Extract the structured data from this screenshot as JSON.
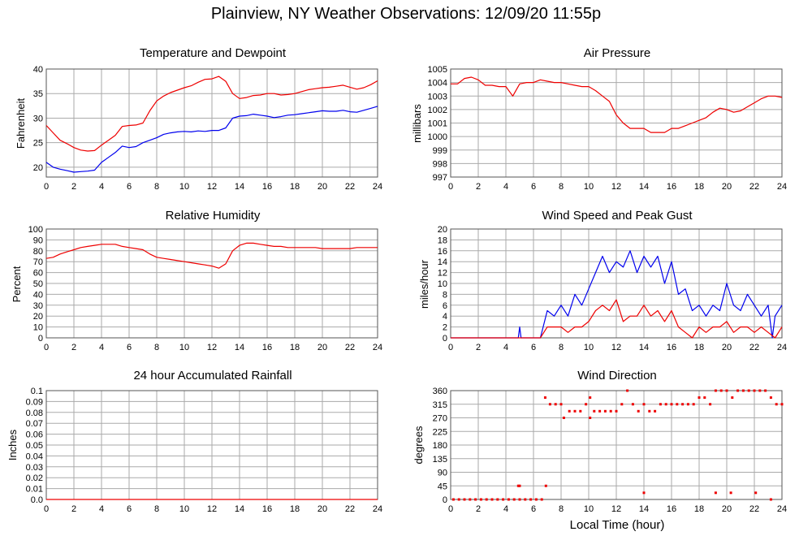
{
  "page": {
    "title": "Plainview, NY Weather Observations: 12/09/20 11:55p"
  },
  "colors": {
    "red": "#ee0000",
    "blue": "#0000ee",
    "grid": "#aaaaaa",
    "frame": "#555555"
  },
  "chart_data": [
    {
      "id": "temp",
      "type": "line",
      "title": "Temperature and Dewpoint",
      "ylabel": "Fahrenheit",
      "xlabel": "",
      "xlim": [
        0,
        24
      ],
      "ylim": [
        18,
        40
      ],
      "yticks": [
        20,
        25,
        30,
        35,
        40
      ],
      "xticks": [
        0,
        2,
        4,
        6,
        8,
        10,
        12,
        14,
        16,
        18,
        20,
        22,
        24
      ],
      "grid": true,
      "series": [
        {
          "color": "red",
          "x": [
            0,
            0.5,
            1,
            1.5,
            2,
            2.5,
            3,
            3.5,
            4,
            4.5,
            5,
            5.5,
            6,
            6.5,
            7,
            7.5,
            8,
            8.5,
            9,
            9.5,
            10,
            10.5,
            11,
            11.5,
            12,
            12.5,
            13,
            13.5,
            14,
            14.5,
            15,
            15.5,
            16,
            16.5,
            17,
            17.5,
            18,
            18.5,
            19,
            19.5,
            20,
            20.5,
            21,
            21.5,
            22,
            22.5,
            23,
            23.5,
            24
          ],
          "y": [
            28.5,
            27,
            25.5,
            24.8,
            24,
            23.5,
            23.3,
            23.4,
            24.5,
            25.5,
            26.5,
            28.3,
            28.5,
            28.6,
            29,
            31.5,
            33.5,
            34.5,
            35.2,
            35.7,
            36.2,
            36.6,
            37.3,
            37.9,
            38,
            38.5,
            37.5,
            35,
            34,
            34.2,
            34.6,
            34.7,
            35,
            35,
            34.7,
            34.8,
            35,
            35.4,
            35.8,
            36,
            36.2,
            36.3,
            36.5,
            36.7,
            36.3,
            35.9,
            36.2,
            36.8,
            37.6
          ]
        },
        {
          "color": "blue",
          "x": [
            0,
            0.5,
            1,
            1.5,
            2,
            2.5,
            3,
            3.5,
            4,
            4.5,
            5,
            5.5,
            6,
            6.5,
            7,
            7.5,
            8,
            8.5,
            9,
            9.5,
            10,
            10.5,
            11,
            11.5,
            12,
            12.5,
            13,
            13.5,
            14,
            14.5,
            15,
            15.5,
            16,
            16.5,
            17,
            17.5,
            18,
            18.5,
            19,
            19.5,
            20,
            20.5,
            21,
            21.5,
            22,
            22.5,
            23,
            23.5,
            24
          ],
          "y": [
            21,
            20,
            19.6,
            19.3,
            19,
            19.1,
            19.2,
            19.4,
            21,
            22,
            23,
            24.3,
            24,
            24.2,
            25,
            25.5,
            26,
            26.7,
            27,
            27.2,
            27.3,
            27.2,
            27.4,
            27.3,
            27.5,
            27.5,
            28,
            30,
            30.4,
            30.5,
            30.8,
            30.6,
            30.4,
            30.1,
            30.3,
            30.6,
            30.7,
            30.9,
            31.1,
            31.3,
            31.5,
            31.4,
            31.4,
            31.6,
            31.3,
            31.2,
            31.6,
            32,
            32.4
          ]
        }
      ]
    },
    {
      "id": "pressure",
      "type": "line",
      "title": "Air Pressure",
      "ylabel": "millibars",
      "xlabel": "",
      "xlim": [
        0,
        24
      ],
      "ylim": [
        997,
        1005
      ],
      "yticks": [
        997,
        998,
        999,
        1000,
        1001,
        1002,
        1003,
        1004,
        1005
      ],
      "xticks": [
        0,
        2,
        4,
        6,
        8,
        10,
        12,
        14,
        16,
        18,
        20,
        22,
        24
      ],
      "grid": true,
      "series": [
        {
          "color": "red",
          "x": [
            0,
            0.5,
            1,
            1.5,
            2,
            2.5,
            3,
            3.5,
            4,
            4.5,
            5,
            5.5,
            6,
            6.5,
            7,
            7.5,
            8,
            8.5,
            9,
            9.5,
            10,
            10.5,
            11,
            11.5,
            12,
            12.5,
            13,
            13.5,
            14,
            14.5,
            15,
            15.5,
            16,
            16.5,
            17,
            17.5,
            18,
            18.5,
            19,
            19.5,
            20,
            20.5,
            21,
            21.5,
            22,
            22.5,
            23,
            23.5,
            24
          ],
          "y": [
            1003.9,
            1003.9,
            1004.3,
            1004.4,
            1004.2,
            1003.8,
            1003.8,
            1003.7,
            1003.7,
            1003.0,
            1003.9,
            1004.0,
            1004.0,
            1004.2,
            1004.1,
            1004.0,
            1004.0,
            1003.9,
            1003.8,
            1003.7,
            1003.7,
            1003.4,
            1003.0,
            1002.6,
            1001.6,
            1001.0,
            1000.6,
            1000.6,
            1000.6,
            1000.3,
            1000.3,
            1000.3,
            1000.6,
            1000.6,
            1000.8,
            1001.0,
            1001.2,
            1001.4,
            1001.8,
            1002.1,
            1002.0,
            1001.8,
            1001.9,
            1002.2,
            1002.5,
            1002.8,
            1003.0,
            1003.0,
            1002.9
          ]
        }
      ]
    },
    {
      "id": "humidity",
      "type": "line",
      "title": "Relative Humidity",
      "ylabel": "Percent",
      "xlabel": "",
      "xlim": [
        0,
        24
      ],
      "ylim": [
        0,
        100
      ],
      "yticks": [
        0,
        10,
        20,
        30,
        40,
        50,
        60,
        70,
        80,
        90,
        100
      ],
      "xticks": [
        0,
        2,
        4,
        6,
        8,
        10,
        12,
        14,
        16,
        18,
        20,
        22,
        24
      ],
      "grid": true,
      "series": [
        {
          "color": "red",
          "x": [
            0,
            0.5,
            1,
            1.5,
            2,
            2.5,
            3,
            3.5,
            4,
            4.5,
            5,
            5.5,
            6,
            6.5,
            7,
            7.5,
            8,
            8.5,
            9,
            9.5,
            10,
            10.5,
            11,
            11.5,
            12,
            12.5,
            13,
            13.5,
            14,
            14.5,
            15,
            15.5,
            16,
            16.5,
            17,
            17.5,
            18,
            18.5,
            19,
            19.5,
            20,
            20.5,
            21,
            21.5,
            22,
            22.5,
            23,
            23.5,
            24
          ],
          "y": [
            73,
            74,
            77,
            79,
            81,
            83,
            84,
            85,
            86,
            86,
            86,
            84,
            83,
            82,
            81,
            77,
            74,
            73,
            72,
            71,
            70,
            69,
            68,
            67,
            66,
            64,
            68,
            80,
            85,
            87,
            87,
            86,
            85,
            84,
            84,
            83,
            83,
            83,
            83,
            83,
            82,
            82,
            82,
            82,
            82,
            83,
            83,
            83,
            83
          ]
        }
      ]
    },
    {
      "id": "wind",
      "type": "line",
      "title": "Wind Speed and Peak Gust",
      "ylabel": "miles/hour",
      "xlabel": "",
      "xlim": [
        0,
        24
      ],
      "ylim": [
        0,
        20
      ],
      "yticks": [
        0,
        2,
        4,
        6,
        8,
        10,
        12,
        14,
        16,
        18,
        20
      ],
      "xticks": [
        0,
        2,
        4,
        6,
        8,
        10,
        12,
        14,
        16,
        18,
        20,
        22,
        24
      ],
      "grid": true,
      "series": [
        {
          "color": "blue",
          "x": [
            0,
            4.9,
            5.0,
            5.1,
            6.5,
            6.7,
            7.0,
            7.5,
            8.0,
            8.5,
            9.0,
            9.5,
            10.0,
            10.5,
            11.0,
            11.5,
            12.0,
            12.5,
            13.0,
            13.5,
            14.0,
            14.5,
            15.0,
            15.5,
            16.0,
            16.5,
            17.0,
            17.5,
            18.0,
            18.5,
            19.0,
            19.5,
            20.0,
            20.5,
            21.0,
            21.5,
            22.0,
            22.5,
            23.0,
            23.3,
            23.5,
            24.0
          ],
          "y": [
            0,
            0,
            2,
            0,
            0,
            2,
            5,
            4,
            6,
            4,
            8,
            6,
            9,
            12,
            15,
            12,
            14,
            13,
            16,
            12,
            15,
            13,
            15,
            10,
            14,
            8,
            9,
            5,
            6,
            4,
            6,
            5,
            10,
            6,
            5,
            8,
            6,
            4,
            6,
            0,
            4,
            6
          ]
        },
        {
          "color": "red",
          "x": [
            0,
            6.5,
            7.0,
            7.5,
            8.0,
            8.5,
            9.0,
            9.5,
            10.0,
            10.5,
            11.0,
            11.5,
            12.0,
            12.5,
            13.0,
            13.5,
            14.0,
            14.5,
            15.0,
            15.5,
            16.0,
            16.5,
            17.0,
            17.5,
            18.0,
            18.5,
            19.0,
            19.5,
            20.0,
            20.5,
            21.0,
            21.5,
            22.0,
            22.5,
            23.0,
            23.5,
            24.0
          ],
          "y": [
            0,
            0,
            2,
            2,
            2,
            1,
            2,
            2,
            3,
            5,
            6,
            5,
            7,
            3,
            4,
            4,
            6,
            4,
            5,
            3,
            5,
            2,
            1,
            0,
            2,
            1,
            2,
            2,
            3,
            1,
            2,
            2,
            1,
            2,
            1,
            0,
            2
          ]
        }
      ]
    },
    {
      "id": "rain",
      "type": "line",
      "title": "24 hour Accumulated Rainfall",
      "ylabel": "Inches",
      "xlabel": "",
      "xlim": [
        0,
        24
      ],
      "ylim": [
        0,
        0.1
      ],
      "yticks": [
        0.0,
        0.01,
        0.02,
        0.03,
        0.04,
        0.05,
        0.06,
        0.07,
        0.08,
        0.09,
        0.1
      ],
      "yticklabels": [
        "0.0",
        "0.01",
        "0.02",
        "0.03",
        "0.04",
        "0.05",
        "0.06",
        "0.07",
        "0.08",
        "0.09",
        "0.1"
      ],
      "xticks": [
        0,
        2,
        4,
        6,
        8,
        10,
        12,
        14,
        16,
        18,
        20,
        22,
        24
      ],
      "grid": true,
      "series": [
        {
          "color": "red",
          "x": [
            0,
            24
          ],
          "y": [
            0,
            0
          ]
        }
      ]
    },
    {
      "id": "direction",
      "type": "scatter",
      "title": "Wind Direction",
      "ylabel": "degrees",
      "xlabel": "Local Time (hour)",
      "xlim": [
        0,
        24
      ],
      "ylim": [
        0,
        360
      ],
      "yticks": [
        0,
        45,
        90,
        135,
        180,
        225,
        270,
        315,
        360
      ],
      "xticks": [
        0,
        2,
        4,
        6,
        8,
        10,
        12,
        14,
        16,
        18,
        20,
        22,
        24
      ],
      "grid": true,
      "series": [
        {
          "color": "red",
          "x": [
            0.2,
            0.6,
            1.0,
            1.4,
            1.8,
            2.2,
            2.6,
            3.0,
            3.4,
            3.8,
            4.2,
            4.6,
            5.0,
            5.4,
            5.8,
            6.2,
            6.6,
            6.85,
            7.2,
            7.6,
            8.0,
            8.2,
            8.6,
            9.0,
            9.4,
            9.8,
            10.1,
            10.4,
            10.8,
            11.2,
            11.6,
            12.0,
            12.4,
            12.8,
            13.2,
            13.6,
            14.0,
            14.4,
            14.8,
            15.2,
            15.6,
            16.0,
            16.4,
            16.8,
            17.2,
            17.6,
            18.0,
            18.4,
            18.8,
            19.2,
            19.6,
            20.0,
            20.4,
            20.8,
            21.2,
            21.6,
            22.0,
            22.4,
            22.8,
            23.2,
            23.6,
            24.0,
            4.9,
            5.0,
            6.9,
            10.1,
            14.0,
            19.2,
            20.3,
            22.1,
            23.2
          ],
          "y": [
            0,
            0,
            0,
            0,
            0,
            0,
            0,
            0,
            0,
            0,
            0,
            0,
            0,
            0,
            0,
            0,
            0,
            337,
            315,
            315,
            315,
            270,
            292,
            292,
            292,
            315,
            270,
            292,
            292,
            292,
            292,
            292,
            315,
            360,
            315,
            292,
            315,
            292,
            292,
            315,
            315,
            315,
            315,
            315,
            315,
            315,
            337,
            337,
            315,
            360,
            360,
            360,
            337,
            360,
            360,
            360,
            360,
            360,
            360,
            337,
            315,
            315,
            45,
            45,
            45,
            337,
            22,
            22,
            22,
            22,
            0
          ]
        }
      ]
    }
  ]
}
